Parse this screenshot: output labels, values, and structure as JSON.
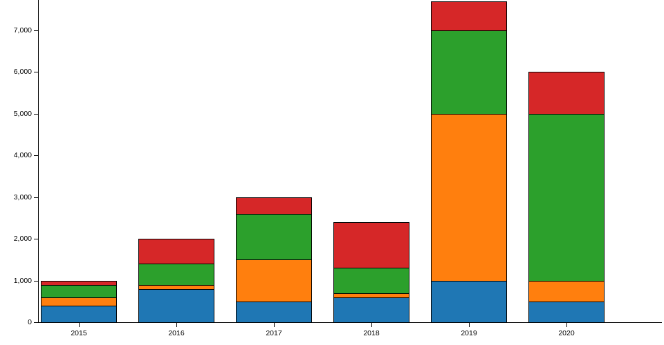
{
  "chart_data": {
    "type": "bar",
    "stacked": true,
    "title": "",
    "xlabel": "",
    "ylabel": "",
    "grid": false,
    "legend": "none",
    "categories": [
      "2015",
      "2016",
      "2017",
      "2018",
      "2019",
      "2020"
    ],
    "series": [
      {
        "name": "series-blue",
        "color": "#1f77b4",
        "values": [
          400,
          800,
          500,
          600,
          1000,
          500
        ]
      },
      {
        "name": "series-orange",
        "color": "#ff7f0e",
        "values": [
          200,
          100,
          1000,
          100,
          4000,
          500
        ]
      },
      {
        "name": "series-green",
        "color": "#2ca02c",
        "values": [
          300,
          500,
          1100,
          600,
          2000,
          4000
        ]
      },
      {
        "name": "series-red",
        "color": "#d62728",
        "values": [
          100,
          600,
          400,
          1100,
          700,
          1000
        ]
      }
    ],
    "totals": [
      1000,
      2000,
      3000,
      2400,
      7700,
      6000
    ],
    "ylim": [
      0,
      7700
    ],
    "yticks": [
      0,
      1000,
      2000,
      3000,
      4000,
      5000,
      6000,
      7000
    ],
    "ytick_labels": [
      "0",
      "1,000",
      "2,000",
      "3,000",
      "4,000",
      "5,000",
      "6,000",
      "7,000"
    ],
    "bar_edge_color": "#000000",
    "axis_color": "#000000"
  }
}
